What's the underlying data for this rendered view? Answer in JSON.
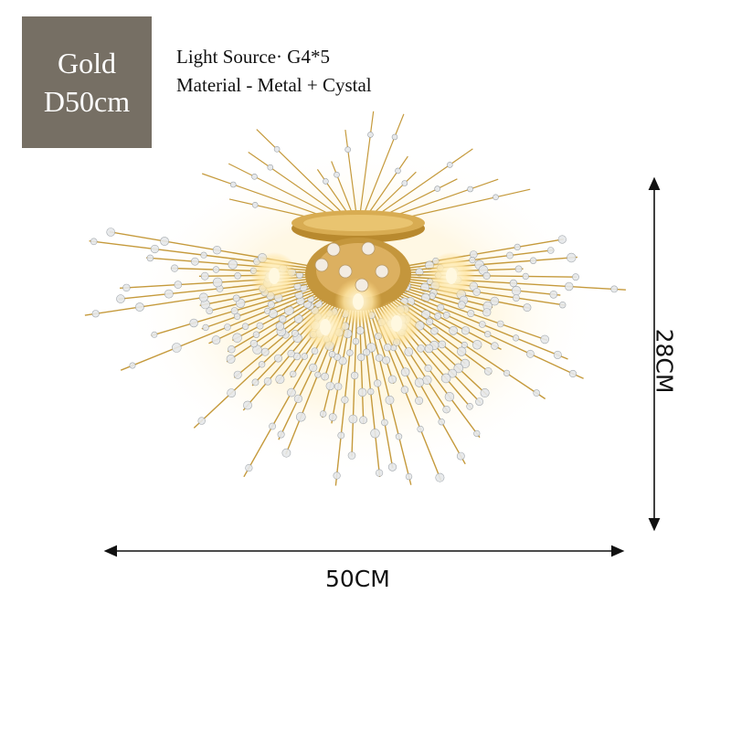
{
  "badge": {
    "line1": "Gold",
    "line2": "D50cm"
  },
  "specs": {
    "light_source": "Light Source· G4*5",
    "material": "Material - Metal + Cystal"
  },
  "dimensions": {
    "width": "50CM",
    "height": "28CM"
  },
  "colors": {
    "badge_bg": "#766f64",
    "gold": "#c59a3c",
    "crystal": "#e6e8ea"
  }
}
